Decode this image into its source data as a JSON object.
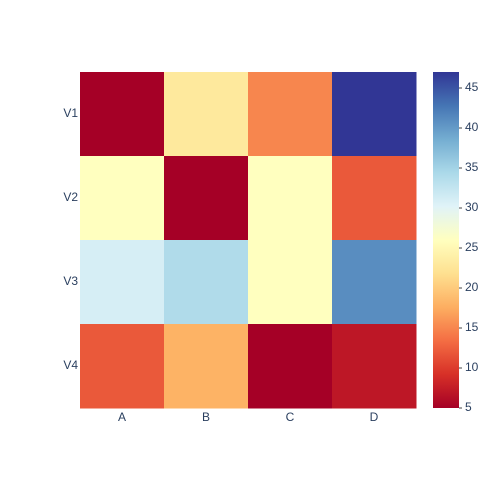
{
  "chart_data": {
    "type": "heatmap",
    "x": [
      "A",
      "B",
      "C",
      "D"
    ],
    "y": [
      "V1",
      "V2",
      "V3",
      "V4"
    ],
    "z": [
      [
        5,
        23,
        15,
        47
      ],
      [
        26,
        5,
        26,
        12
      ],
      [
        31,
        34,
        26,
        41
      ],
      [
        12,
        18,
        5,
        7
      ]
    ],
    "zlim": [
      5,
      47
    ],
    "colorbar_ticks": [
      5,
      10,
      15,
      20,
      25,
      30,
      35,
      40,
      45
    ],
    "colorscale": [
      "#a50026",
      "#d73027",
      "#f46d43",
      "#fdae61",
      "#fee090",
      "#ffffbf",
      "#e0f3f8",
      "#abd9e9",
      "#74add1",
      "#4575b4",
      "#313695"
    ]
  }
}
